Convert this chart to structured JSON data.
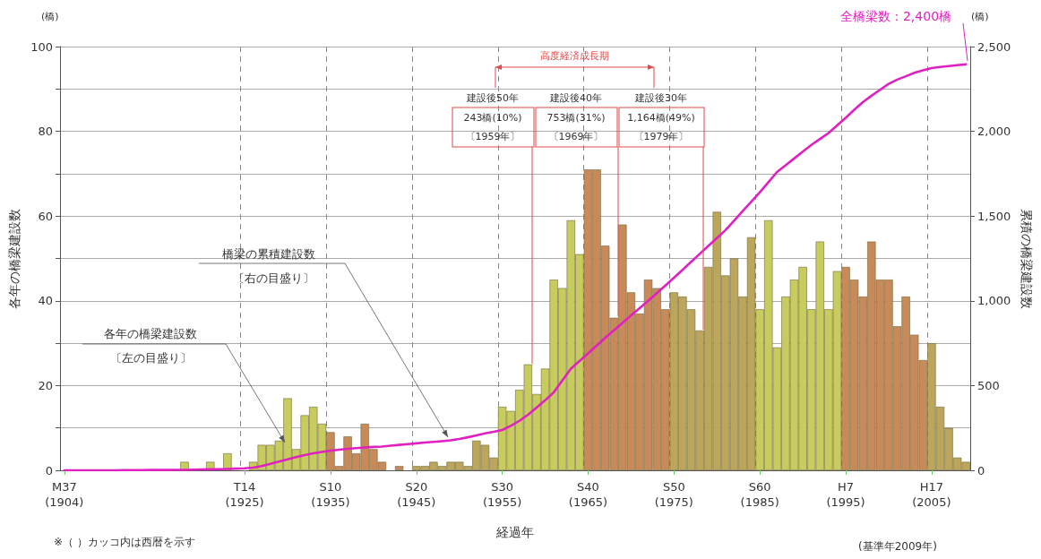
{
  "chart_data": {
    "type": "bar",
    "xlabel": "経過年",
    "ylabel": "各年の橋梁建設数",
    "y2label": "累積の橋梁建設数",
    "categories": [
      "M37\n(1904)",
      null,
      null,
      null,
      null,
      null,
      null,
      null,
      null,
      null,
      null,
      null,
      null,
      null,
      null,
      null,
      null,
      null,
      null,
      null,
      null,
      "T14\n(1925)",
      null,
      null,
      null,
      null,
      null,
      null,
      null,
      null,
      null,
      "S10\n(1935)",
      null,
      null,
      null,
      null,
      null,
      null,
      null,
      null,
      null,
      "S20\n(1945)",
      null,
      null,
      null,
      null,
      null,
      null,
      null,
      null,
      null,
      "S30\n(1955)",
      null,
      null,
      null,
      null,
      null,
      null,
      null,
      null,
      null,
      "S40\n(1965)",
      null,
      null,
      null,
      null,
      null,
      null,
      null,
      null,
      null,
      "S50\n(1975)",
      null,
      null,
      null,
      null,
      null,
      null,
      null,
      null,
      null,
      "S60\n(1985)",
      null,
      null,
      null,
      null,
      null,
      null,
      null,
      null,
      null,
      "H7\n(1995)",
      null,
      null,
      null,
      null,
      null,
      null,
      null,
      null,
      null,
      "H17\n(2005)",
      null,
      null,
      null,
      null
    ],
    "ylim": [
      0,
      100
    ],
    "yticks": [
      0,
      {
        "value": 10,
        "label": null
      },
      20,
      {
        "value": 30,
        "label": null
      },
      40,
      {
        "value": 50,
        "label": null
      },
      60,
      {
        "value": 70,
        "label": null
      },
      80,
      {
        "value": 90,
        "label": null
      },
      100
    ],
    "y2lim": [
      0,
      2500
    ],
    "y2ticks": [
      0,
      500,
      {
        "value": 1000,
        "label": "1,000"
      },
      {
        "value": 1500,
        "label": "1,500"
      },
      {
        "value": 2000,
        "label": "2,000"
      },
      {
        "value": 2500,
        "label": "2,500"
      }
    ],
    "grid": true,
    "marker": "none",
    "series": [
      {
        "values": [
          0,
          0,
          0,
          0,
          0,
          0,
          0,
          0,
          0,
          0,
          0,
          0,
          0,
          0,
          2,
          0,
          0,
          2,
          0,
          4,
          0,
          0,
          2,
          6,
          6,
          7,
          17,
          5,
          13,
          15,
          11,
          9,
          1,
          8,
          4,
          11,
          5,
          2,
          0,
          1,
          0,
          1,
          1,
          2,
          1,
          2,
          2,
          1,
          7,
          6,
          3,
          15,
          14,
          19,
          25,
          18,
          24,
          45,
          43,
          59,
          51,
          71,
          71,
          53,
          36,
          58,
          42,
          37,
          45,
          43,
          38,
          42,
          41,
          38,
          33,
          48,
          61,
          46,
          50,
          41,
          55,
          38,
          59,
          29,
          41,
          45,
          48,
          38,
          54,
          38,
          47,
          48,
          45,
          41,
          54,
          45,
          45,
          34,
          41,
          32,
          26,
          30,
          15,
          10,
          3,
          2
        ],
        "colors": [
          "#c8cc5e",
          "#c8cc5e",
          "#c8cc5e",
          "#c8cc5e",
          "#c8cc5e",
          "#c8cc5e",
          "#c8cc5e",
          "#c8cc5e",
          "#c8cc5e",
          "#c8cc5e",
          "#c8cc5e",
          "#c8cc5e",
          "#c8cc5e",
          "#c8cc5e",
          "#c8cc5e",
          "#c8cc5e",
          "#c8cc5e",
          "#c8cc5e",
          "#c8cc5e",
          "#c8cc5e",
          "#c8cc5e",
          "#c8cc5e",
          "#c8cc5e",
          "#c8cc5e",
          "#c8cc5e",
          "#c8cc5e",
          "#c8cc5e",
          "#c8cc5e",
          "#c8cc5e",
          "#c8cc5e",
          "#c8cc5e",
          "#c98a5a",
          "#c98a5a",
          "#c98a5a",
          "#c98a5a",
          "#c98a5a",
          "#c98a5a",
          "#c98a5a",
          "#c98a5a",
          "#c98a5a",
          "#c98a5a",
          "#bca65c",
          "#bca65c",
          "#bca65c",
          "#bca65c",
          "#bca65c",
          "#bca65c",
          "#bca65c",
          "#bca65c",
          "#bca65c",
          "#bca65c",
          "#c8cc5e",
          "#c8cc5e",
          "#c8cc5e",
          "#c8cc5e",
          "#c8cc5e",
          "#c8cc5e",
          "#c8cc5e",
          "#c8cc5e",
          "#c8cc5e",
          "#c8cc5e",
          "#c98a5a",
          "#c98a5a",
          "#c98a5a",
          "#c98a5a",
          "#c98a5a",
          "#c98a5a",
          "#c98a5a",
          "#c98a5a",
          "#c98a5a",
          "#c98a5a",
          "#bca65c",
          "#bca65c",
          "#bca65c",
          "#bca65c",
          "#bca65c",
          "#bca65c",
          "#bca65c",
          "#bca65c",
          "#bca65c",
          "#bca65c",
          "#c8cc5e",
          "#c8cc5e",
          "#c8cc5e",
          "#c8cc5e",
          "#c8cc5e",
          "#c8cc5e",
          "#c8cc5e",
          "#c8cc5e",
          "#c8cc5e",
          "#c8cc5e",
          "#c98a5a",
          "#c98a5a",
          "#c98a5a",
          "#c98a5a",
          "#c98a5a",
          "#c98a5a",
          "#c98a5a",
          "#c98a5a",
          "#c98a5a",
          "#c98a5a",
          "#bca65c",
          "#bca65c",
          "#bca65c",
          "#bca65c",
          "#bca65c"
        ]
      },
      {
        "type": "line",
        "axis": "y2",
        "color": "#e020c0",
        "values": [
          0,
          0,
          0,
          0,
          0,
          0,
          0,
          1,
          1,
          1,
          2,
          2,
          2,
          3,
          3,
          4,
          5,
          6,
          7,
          8,
          10,
          12,
          16,
          25,
          38,
          52,
          65,
          78,
          90,
          100,
          108,
          116,
          122,
          127,
          131,
          135,
          138,
          140,
          145,
          150,
          155,
          159,
          164,
          168,
          172,
          177,
          185,
          195,
          206,
          218,
          227,
          238,
          262,
          292,
          328,
          370,
          413,
          460,
          530,
          600,
          645,
          690,
          736,
          782,
          826,
          870,
          914,
          957,
          1000,
          1045,
          1090,
          1136,
          1183,
          1230,
          1277,
          1324,
          1370,
          1417,
          1473,
          1529,
          1585,
          1640,
          1700,
          1760,
          1800,
          1840,
          1880,
          1920,
          1955,
          1990,
          2035,
          2080,
          2127,
          2172,
          2210,
          2245,
          2280,
          2305,
          2325,
          2345,
          2360,
          2373,
          2380,
          2385,
          2390,
          2395
        ]
      }
    ],
    "annotations": [
      "全橋梁数：2,400橋",
      "橋梁の累積建設数",
      "〔右の目盛り〕",
      "各年の橋梁建設数",
      "〔左の目盛り〕",
      "高度経済成長期",
      "建設後50年",
      "243橋(10%)",
      "〔1959年〕",
      "建設後40年",
      "753橋(31%)",
      "〔1969年〕",
      "建設後30年",
      "1,164橋(49%)",
      "〔1979年〕",
      "(橋)",
      "(橋)",
      "※（ ）カッコ内は西暦を示す",
      "(基準年2009年)"
    ]
  }
}
